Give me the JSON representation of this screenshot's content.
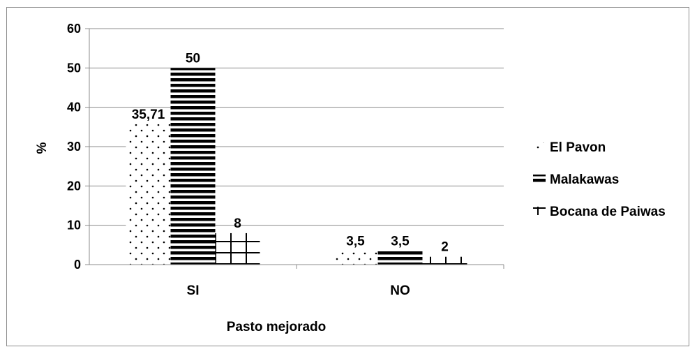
{
  "chart_data": {
    "type": "bar",
    "title": "",
    "xlabel": "Pasto mejorado",
    "ylabel": "%",
    "ylim": [
      0,
      60
    ],
    "yticks": [
      0,
      10,
      20,
      30,
      40,
      50,
      60
    ],
    "grid": true,
    "legend_position": "right",
    "categories": [
      "SI",
      "NO"
    ],
    "series": [
      {
        "name": "El Pavon",
        "values": [
          35.71,
          3.5
        ],
        "labels": [
          "35,71",
          "3,5"
        ],
        "pattern": "dots"
      },
      {
        "name": "Malakawas",
        "values": [
          50,
          3.5
        ],
        "labels": [
          "50",
          "3,5"
        ],
        "pattern": "horizontal-stripes"
      },
      {
        "name": "Bocana de Paiwas",
        "values": [
          8,
          2
        ],
        "labels": [
          "8",
          "2"
        ],
        "pattern": "grid"
      }
    ]
  }
}
